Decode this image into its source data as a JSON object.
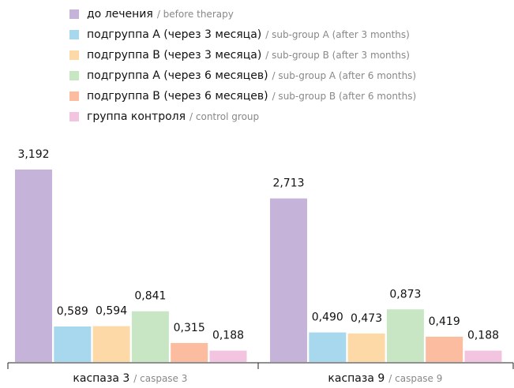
{
  "chart_data": {
    "type": "bar",
    "categories": [
      "каспаза 3",
      "каспаза 9"
    ],
    "categories_en": [
      "/ caspase 3",
      "/ caspase 9"
    ],
    "series": [
      {
        "name": "до лечения",
        "name_en": "/ before therapy",
        "color": "#c5b3d9",
        "values": [
          3.192,
          2.713
        ],
        "value_labels": [
          "3,192",
          "2,713"
        ]
      },
      {
        "name": "подгруппа А (через 3 месяца)",
        "name_en": "/ sub-group A (after 3 months)",
        "color": "#a8d8ee",
        "values": [
          0.589,
          0.49
        ],
        "value_labels": [
          "0,589",
          "0,490"
        ]
      },
      {
        "name": "подгруппа В (через 3 месяца)",
        "name_en": "/ sub-group B (after 3 months)",
        "color": "#fdd9a8",
        "values": [
          0.594,
          0.473
        ],
        "value_labels": [
          "0,594",
          "0,473"
        ]
      },
      {
        "name": "подгруппа А (через 6 месяцев)",
        "name_en": "/ sub-group A (after 6 months)",
        "color": "#c8e6c4",
        "values": [
          0.841,
          0.873
        ],
        "value_labels": [
          "0,841",
          "0,873"
        ]
      },
      {
        "name": "подгруппа В (через 6 месяцев)",
        "name_en": "/ sub-group B (after 6 months)",
        "color": "#fbbca0",
        "values": [
          0.315,
          0.419
        ],
        "value_labels": [
          "0,315",
          "0,419"
        ]
      },
      {
        "name": "группа контроля",
        "name_en": "/ control group",
        "color": "#f2c4df",
        "values": [
          0.188,
          0.188
        ],
        "value_labels": [
          "0,188",
          "0,188"
        ]
      }
    ]
  }
}
